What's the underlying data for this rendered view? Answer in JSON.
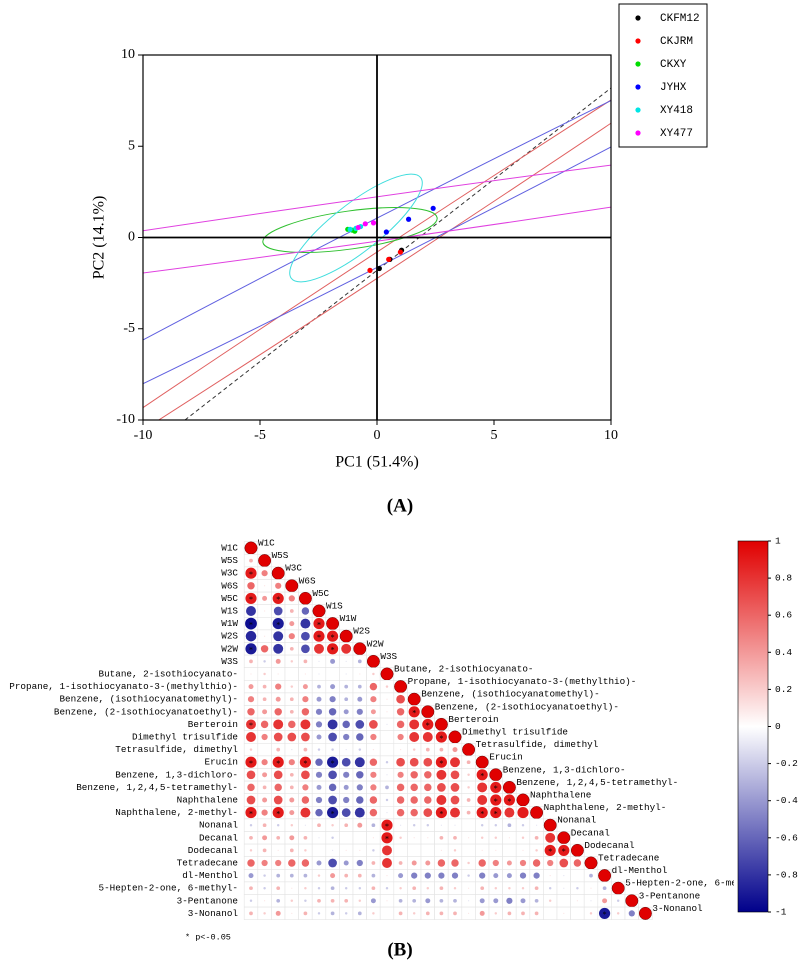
{
  "chart_data": [
    {
      "type": "scatter",
      "panel_label": "(A)",
      "x_label": "PC1 (51.4%)",
      "y_label": "PC2 (14.1%)",
      "xlim": [
        -10,
        10
      ],
      "ylim": [
        -10,
        10
      ],
      "xticks": [
        -10,
        -5,
        0,
        5,
        10
      ],
      "yticks": [
        -10,
        -5,
        0,
        5,
        10
      ],
      "legend": "upper right",
      "series": [
        {
          "name": "CKFM12",
          "color": "#000000",
          "x": [
            0.1,
            0.55,
            1.05
          ],
          "values": [
            -1.7,
            -1.2,
            -0.7
          ]
        },
        {
          "name": "CKJRM",
          "color": "#ff0000",
          "x": [
            -0.3,
            0.5,
            1.0
          ],
          "values": [
            -1.8,
            -1.2,
            -0.8
          ]
        },
        {
          "name": "CKXY",
          "color": "#00dd00",
          "x": [
            -1.25,
            -1.05,
            -0.95
          ],
          "values": [
            0.45,
            0.4,
            0.35
          ]
        },
        {
          "name": "JYHX",
          "color": "#0000ff",
          "x": [
            0.4,
            1.35,
            2.4
          ],
          "values": [
            0.3,
            1.0,
            1.6
          ]
        },
        {
          "name": "XY418",
          "color": "#00e5e5",
          "x": [
            -1.15,
            -0.9,
            -0.7
          ],
          "values": [
            0.45,
            0.5,
            0.6
          ]
        },
        {
          "name": "XY477",
          "color": "#ff00ff",
          "x": [
            -0.8,
            -0.5,
            -0.15
          ],
          "values": [
            0.55,
            0.75,
            0.8
          ]
        }
      ]
    },
    {
      "type": "correlation",
      "panel_label": "(B)",
      "note": "* p<-0.05",
      "significance_mark": "*",
      "clim": [
        -1,
        1
      ],
      "cticks": [
        1,
        0.8,
        0.6,
        0.4,
        0.2,
        0,
        -0.2,
        -0.4,
        -0.6,
        -0.8,
        -1
      ],
      "colormap": [
        "#00008b",
        "#ffffff",
        "#e00000"
      ],
      "variables": [
        "W1C",
        "W5S",
        "W3C",
        "W6S",
        "W5C",
        "W1S",
        "W1W",
        "W2S",
        "W2W",
        "W3S",
        "Butane, 2-isothiocyanato-",
        "Propane, 1-isothiocyanato-3-(methylthio)-",
        "Benzene, (isothiocyanatomethyl)-",
        "Benzene, (2-isothiocyanatoethyl)-",
        "Berteroin",
        "Dimethyl trisulfide",
        "Tetrasulfide, dimethyl",
        "Erucin",
        "Benzene, 1,3-dichloro-",
        "Benzene, 1,2,4,5-tetramethyl-",
        "Naphthalene",
        "Naphthalene, 2-methyl-",
        "Nonanal",
        "Decanal",
        "Dodecanal",
        "Tetradecane",
        "dl-Menthol",
        "5-Hepten-2-one, 6-methyl-",
        "3-Pentanone",
        "3-Nonanol"
      ],
      "values": [
        [
          1
        ],
        [
          0.3,
          1
        ],
        [
          0.9,
          0.5,
          1
        ],
        [
          0.6,
          0.1,
          0.5,
          1
        ],
        [
          0.9,
          0.4,
          0.9,
          0.5,
          1
        ],
        [
          -0.8,
          0.1,
          -0.7,
          0.3,
          -0.6,
          1
        ],
        [
          -0.95,
          0.0,
          -0.9,
          0.4,
          -0.8,
          0.9,
          1
        ],
        [
          -0.85,
          0.1,
          -0.8,
          0.5,
          -0.7,
          0.9,
          0.9,
          1
        ],
        [
          -0.9,
          0.6,
          -0.8,
          0.3,
          -0.7,
          0.8,
          0.9,
          0.8,
          1
        ],
        [
          0.3,
          -0.2,
          0.4,
          0.2,
          0.3,
          -0.1,
          -0.4,
          -0.1,
          -0.3,
          1
        ],
        [
          0.1,
          0.2,
          0.1,
          0.0,
          0.1,
          -0.1,
          0.0,
          -0.1,
          0.1,
          0.2,
          1
        ],
        [
          0.4,
          0.3,
          0.5,
          0.2,
          0.4,
          -0.3,
          -0.4,
          -0.3,
          -0.3,
          0.6,
          0.2,
          1
        ],
        [
          0.5,
          0.3,
          0.4,
          0.3,
          0.5,
          -0.4,
          -0.5,
          -0.3,
          -0.4,
          0.5,
          0.1,
          0.7,
          1
        ],
        [
          0.6,
          0.4,
          0.6,
          0.3,
          0.6,
          -0.5,
          -0.6,
          -0.4,
          -0.5,
          0.4,
          0.1,
          0.6,
          0.9,
          1
        ],
        [
          0.8,
          0.6,
          0.8,
          0.6,
          0.8,
          -0.5,
          -0.8,
          -0.6,
          -0.7,
          0.7,
          -0.1,
          0.6,
          0.8,
          0.9,
          1
        ],
        [
          0.8,
          0.5,
          0.7,
          0.7,
          0.7,
          -0.4,
          -0.7,
          -0.5,
          -0.6,
          0.5,
          0.0,
          0.5,
          0.8,
          0.8,
          0.9,
          1
        ],
        [
          0.2,
          0.0,
          0.3,
          -0.1,
          0.3,
          -0.2,
          -0.2,
          -0.1,
          -0.2,
          0.1,
          0.0,
          0.1,
          0.2,
          0.3,
          0.3,
          0.4,
          1
        ],
        [
          0.9,
          0.5,
          0.9,
          0.5,
          0.9,
          -0.6,
          -0.9,
          -0.7,
          -0.8,
          0.6,
          -0.2,
          0.7,
          0.7,
          0.7,
          0.9,
          0.8,
          0.3,
          1
        ],
        [
          0.7,
          0.4,
          0.7,
          0.3,
          0.7,
          -0.5,
          -0.7,
          -0.5,
          -0.6,
          0.5,
          -0.1,
          0.5,
          0.6,
          0.6,
          0.8,
          0.7,
          0.2,
          0.9,
          1
        ],
        [
          0.6,
          0.3,
          0.6,
          0.3,
          0.5,
          -0.4,
          -0.6,
          -0.4,
          -0.5,
          0.5,
          -0.3,
          0.6,
          0.6,
          0.6,
          0.7,
          0.7,
          0.2,
          0.8,
          0.9,
          1
        ],
        [
          0.7,
          0.4,
          0.7,
          0.4,
          0.6,
          -0.5,
          -0.7,
          -0.5,
          -0.6,
          0.6,
          -0.2,
          0.6,
          0.6,
          0.6,
          0.8,
          0.7,
          0.3,
          0.8,
          0.9,
          0.9,
          1
        ],
        [
          0.9,
          0.5,
          0.9,
          0.4,
          0.8,
          -0.6,
          -0.9,
          -0.7,
          -0.8,
          0.6,
          -0.1,
          0.6,
          0.6,
          0.7,
          0.9,
          0.8,
          0.3,
          0.9,
          0.9,
          0.8,
          0.9,
          1
        ],
        [
          -0.2,
          0.3,
          -0.2,
          0.2,
          -0.1,
          0.3,
          0.2,
          0.3,
          0.4,
          -0.3,
          0.9,
          -0.1,
          -0.2,
          -0.2,
          -0.1,
          -0.1,
          0.0,
          -0.2,
          -0.2,
          -0.3,
          -0.2,
          -0.1,
          1
        ],
        [
          0.3,
          0.4,
          0.3,
          0.4,
          0.3,
          -0.1,
          -0.2,
          0.0,
          0.0,
          0.1,
          0.9,
          0.2,
          0.1,
          0.1,
          0.3,
          0.3,
          0.1,
          0.2,
          0.2,
          0.1,
          0.2,
          0.3,
          0.8,
          1
        ],
        [
          0.2,
          0.3,
          0.1,
          0.3,
          0.2,
          0.0,
          -0.1,
          0.1,
          0.1,
          -0.2,
          0.8,
          0.0,
          0.0,
          0.0,
          0.1,
          0.2,
          0.0,
          0.1,
          0.1,
          0.0,
          0.1,
          0.2,
          0.9,
          0.9,
          1
        ],
        [
          0.6,
          0.5,
          0.5,
          0.6,
          0.6,
          -0.4,
          -0.7,
          -0.4,
          -0.5,
          0.3,
          0.8,
          0.3,
          0.4,
          0.4,
          0.6,
          0.6,
          0.2,
          0.6,
          0.5,
          0.4,
          0.5,
          0.6,
          0.5,
          0.7,
          0.6,
          1
        ],
        [
          -0.4,
          -0.2,
          -0.3,
          -0.3,
          -0.3,
          0.2,
          0.4,
          0.3,
          0.3,
          -0.3,
          0.1,
          -0.4,
          -0.5,
          -0.5,
          -0.5,
          -0.5,
          -0.2,
          -0.5,
          -0.4,
          -0.4,
          -0.5,
          -0.5,
          0.1,
          -0.1,
          0.0,
          -0.3,
          1
        ],
        [
          0.3,
          -0.2,
          0.3,
          0.1,
          0.2,
          -0.2,
          -0.3,
          -0.2,
          -0.2,
          0.3,
          -0.2,
          0.2,
          0.3,
          0.2,
          0.3,
          0.2,
          0.1,
          0.3,
          0.2,
          0.2,
          0.2,
          0.3,
          -0.2,
          -0.1,
          -0.2,
          0.1,
          -0.3,
          1
        ],
        [
          -0.2,
          0.1,
          -0.3,
          0.2,
          -0.2,
          0.3,
          0.3,
          0.3,
          0.2,
          -0.4,
          0.1,
          -0.3,
          -0.3,
          -0.4,
          -0.3,
          -0.3,
          -0.1,
          -0.4,
          -0.4,
          -0.5,
          -0.4,
          -0.3,
          0.2,
          0.0,
          0.1,
          -0.1,
          0.4,
          -0.2,
          1
        ],
        [
          0.3,
          0.2,
          0.4,
          0.1,
          0.3,
          -0.2,
          -0.3,
          -0.2,
          -0.3,
          0.2,
          0.0,
          0.3,
          0.2,
          0.3,
          0.3,
          0.3,
          0.1,
          0.4,
          0.2,
          0.3,
          0.3,
          0.3,
          0.0,
          0.1,
          0.0,
          0.2,
          -0.9,
          0.2,
          -0.5,
          1
        ]
      ],
      "significant": [
        [
          2,
          0
        ],
        [
          4,
          0
        ],
        [
          4,
          2
        ],
        [
          6,
          0
        ],
        [
          6,
          2
        ],
        [
          6,
          5
        ],
        [
          7,
          5
        ],
        [
          7,
          6
        ],
        [
          8,
          0
        ],
        [
          8,
          6
        ],
        [
          13,
          12
        ],
        [
          14,
          0
        ],
        [
          14,
          13
        ],
        [
          15,
          14
        ],
        [
          17,
          0
        ],
        [
          17,
          2
        ],
        [
          17,
          4
        ],
        [
          17,
          6
        ],
        [
          17,
          14
        ],
        [
          18,
          17
        ],
        [
          19,
          18
        ],
        [
          20,
          18
        ],
        [
          20,
          19
        ],
        [
          21,
          0
        ],
        [
          21,
          2
        ],
        [
          21,
          6
        ],
        [
          21,
          14
        ],
        [
          21,
          17
        ],
        [
          21,
          18
        ],
        [
          22,
          10
        ],
        [
          23,
          10
        ],
        [
          24,
          22
        ],
        [
          24,
          23
        ],
        [
          29,
          26
        ]
      ]
    }
  ]
}
